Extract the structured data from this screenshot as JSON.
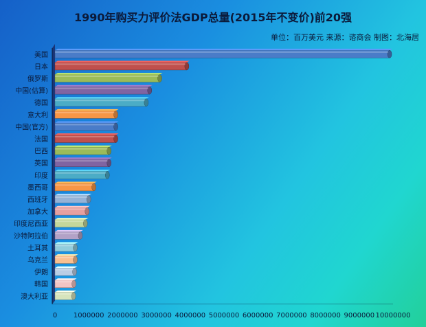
{
  "chart_data": {
    "type": "bar",
    "orientation": "horizontal",
    "title": "1990年购买力评价法GDP总量(2015年不变价)前20强",
    "subtitle": "单位：百万美元 来源：谘商会 制图：北海居",
    "categories": [
      "美国",
      "日本",
      "俄罗斯",
      "中国(估算)",
      "德国",
      "意大利",
      "中国(官方)",
      "法国",
      "巴西",
      "英国",
      "印度",
      "墨西哥",
      "西班牙",
      "加拿大",
      "印度尼西亚",
      "沙特阿拉伯",
      "土耳其",
      "乌克兰",
      "伊朗",
      "韩国",
      "澳大利亚"
    ],
    "values": [
      9900000,
      3900000,
      3100000,
      2800000,
      2700000,
      1800000,
      1800000,
      1800000,
      1600000,
      1600000,
      1550000,
      1150000,
      1000000,
      950000,
      900000,
      750000,
      600000,
      600000,
      580000,
      560000,
      550000
    ],
    "colors": [
      "#4a7cc8",
      "#c0504d",
      "#9bbb59",
      "#8064a2",
      "#4bacc6",
      "#f79646",
      "#4a7cc8",
      "#c0504d",
      "#9bbb59",
      "#8064a2",
      "#4bacc6",
      "#f79646",
      "#95b3d7",
      "#e6a0a0",
      "#c4d79b",
      "#b3a2c7",
      "#92cddc",
      "#fac090",
      "#b9cde5",
      "#f2c4c4",
      "#d7e4bc"
    ],
    "x_ticks": [
      "0",
      "1000000",
      "2000000",
      "3000000",
      "4000000",
      "5000000",
      "6000000",
      "7000000",
      "8000000",
      "9000000",
      "10000000"
    ],
    "xlim": [
      0,
      10000000
    ],
    "grid": false,
    "legend": "none"
  }
}
